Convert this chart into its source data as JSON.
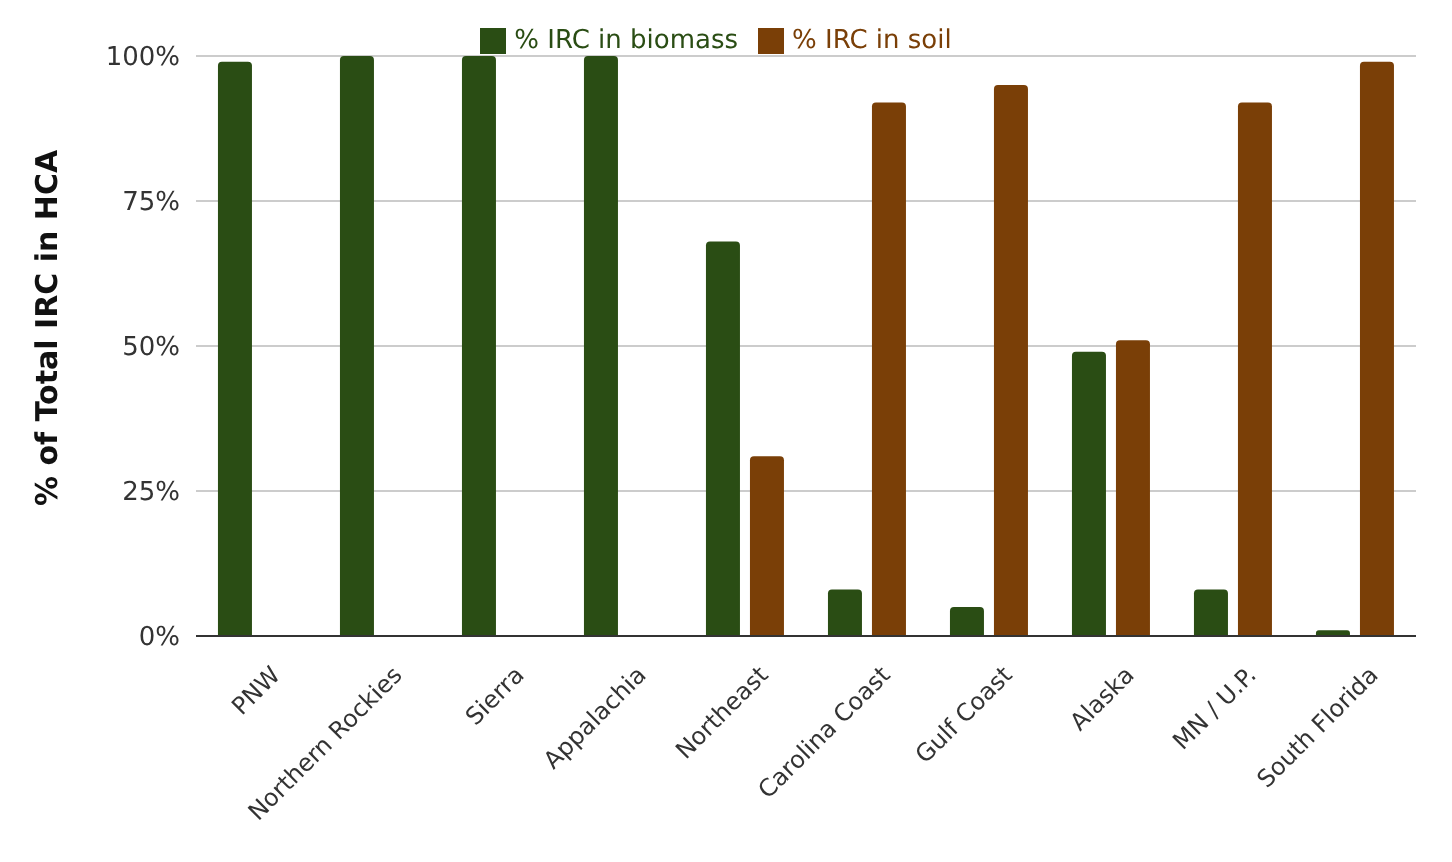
{
  "chart_data": {
    "type": "bar",
    "ylabel": "% of Total IRC in HCA",
    "categories": [
      "PNW",
      "Northern Rockies",
      "Sierra",
      "Appalachia",
      "Northeast",
      "Carolina Coast",
      "Gulf Coast",
      "Alaska",
      "MN / U.P.",
      "South Florida"
    ],
    "series": [
      {
        "name": "% IRC in biomass",
        "color": "#2a4d14",
        "values": [
          99,
          100,
          100,
          100,
          68,
          8,
          5,
          49,
          8,
          1
        ]
      },
      {
        "name": "% IRC in soil",
        "color": "#7a3f07",
        "values": [
          0,
          0,
          0,
          0,
          31,
          92,
          95,
          51,
          92,
          99
        ]
      }
    ],
    "ylim": [
      0,
      100
    ],
    "yticks": [
      {
        "value": 0,
        "label": "0%"
      },
      {
        "value": 25,
        "label": "25%"
      },
      {
        "value": 50,
        "label": "50%"
      },
      {
        "value": 75,
        "label": "75%"
      },
      {
        "value": 100,
        "label": "100%"
      }
    ],
    "grid": "y",
    "legend": "top"
  }
}
